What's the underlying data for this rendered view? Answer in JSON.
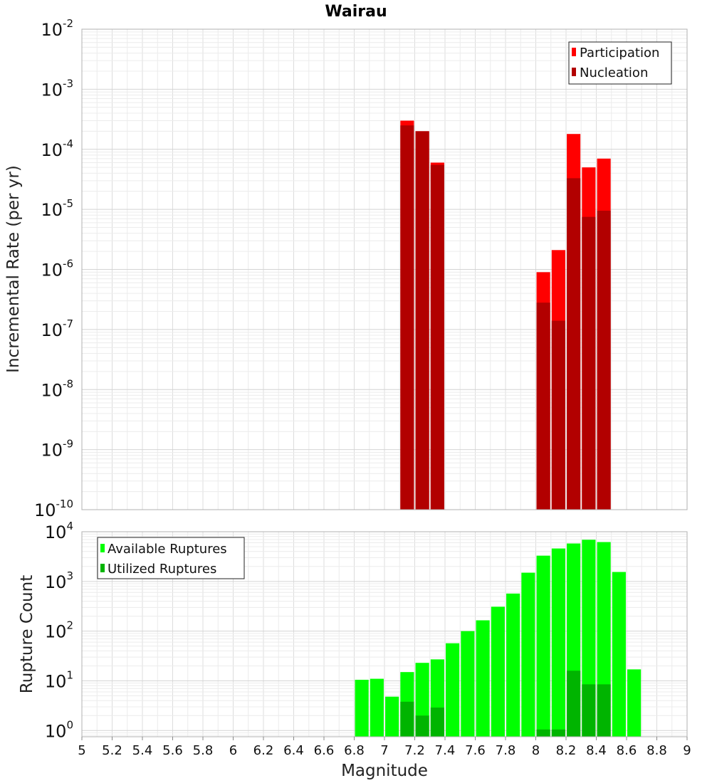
{
  "chart_data": [
    {
      "type": "bar",
      "title": "Wairau",
      "xlabel": "Magnitude",
      "ylabel": "Incremental Rate (per yr)",
      "yscale": "log",
      "xlim": [
        5,
        9
      ],
      "ylim": [
        1e-10,
        0.01
      ],
      "grid": true,
      "legend_position": "top-right",
      "x": [
        7.15,
        7.25,
        7.35,
        8.05,
        8.15,
        8.25,
        8.35,
        8.45
      ],
      "series": [
        {
          "name": "Participation",
          "color": "#ff0000",
          "values": [
            0.0003,
            0.0002,
            6e-05,
            9e-07,
            2.1e-06,
            0.00018,
            5e-05,
            7e-05
          ]
        },
        {
          "name": "Nucleation",
          "color": "#b20000",
          "values": [
            0.00025,
            0.0002,
            5.5e-05,
            2.8e-07,
            1.4e-07,
            3.3e-05,
            7.5e-06,
            9.5e-06
          ]
        }
      ]
    },
    {
      "type": "bar",
      "title": "",
      "xlabel": "Magnitude",
      "ylabel": "Rupture Count",
      "yscale": "log",
      "xlim": [
        5,
        9
      ],
      "ylim": [
        0.75,
        10000
      ],
      "grid": true,
      "legend_position": "top-left",
      "x": [
        6.85,
        6.95,
        7.05,
        7.15,
        7.25,
        7.35,
        7.45,
        7.55,
        7.65,
        7.75,
        7.85,
        7.95,
        8.05,
        8.15,
        8.25,
        8.35,
        8.45,
        8.55,
        8.65
      ],
      "series": [
        {
          "name": "Available Ruptures",
          "color": "#00ff00",
          "values": [
            10.5,
            11,
            4.8,
            15,
            23,
            27,
            57,
            100,
            165,
            310,
            570,
            1500,
            3300,
            4600,
            5800,
            6900,
            6200,
            1550,
            17
          ]
        },
        {
          "name": "Utilized Ruptures",
          "color": "#00b400",
          "values": [
            null,
            null,
            null,
            3.8,
            2.0,
            2.9,
            null,
            null,
            null,
            null,
            null,
            null,
            1.05,
            1.05,
            16,
            8.5,
            8.5,
            null,
            null
          ]
        }
      ]
    }
  ],
  "x_ticks": [
    "5",
    "5.2",
    "5.4",
    "5.6",
    "5.8",
    "6",
    "6.2",
    "6.4",
    "6.6",
    "6.8",
    "7",
    "7.2",
    "7.4",
    "7.6",
    "7.8",
    "8",
    "8.2",
    "8.4",
    "8.6",
    "8.8",
    "9"
  ],
  "top_y_exponents": [
    "-2",
    "-3",
    "-4",
    "-5",
    "-6",
    "-7",
    "-8",
    "-9",
    "-10"
  ],
  "bottom_y_exponents": [
    "4",
    "3",
    "2",
    "1",
    "0"
  ],
  "y_base": "10"
}
